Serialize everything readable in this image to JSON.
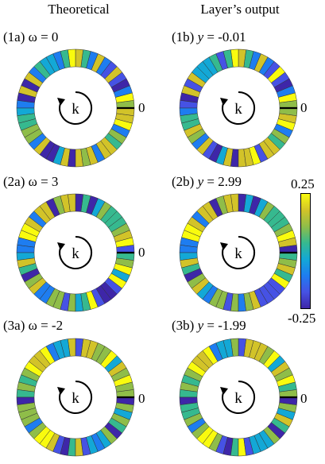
{
  "headers": {
    "left": "Theoretical",
    "right": "Layer’s output"
  },
  "panels": [
    {
      "id": "1a",
      "tag": "(1a)",
      "symbol": "ω",
      "value": "= 0"
    },
    {
      "id": "1b",
      "tag": "(1b)",
      "symbol": "y",
      "value": "= -0.01"
    },
    {
      "id": "2a",
      "tag": "(2a)",
      "symbol": "ω",
      "value": "= 3"
    },
    {
      "id": "2b",
      "tag": "(2b)",
      "symbol": "y",
      "value": "= 2.99"
    },
    {
      "id": "3a",
      "tag": "(3a)",
      "symbol": "ω",
      "value": "= -2"
    },
    {
      "id": "3b",
      "tag": "(3b)",
      "symbol": "y",
      "value": "= -1.99"
    }
  ],
  "ring": {
    "center_label": "k",
    "zero_label": "0",
    "segments": 48
  },
  "colorbar": {
    "max_label": "0.25",
    "min_label": "-0.25",
    "colors": [
      "#3e26a8",
      "#4652e4",
      "#1e7df0",
      "#13a8d6",
      "#36b98f",
      "#8fbd49",
      "#d2c329",
      "#f9fb0e"
    ]
  }
}
